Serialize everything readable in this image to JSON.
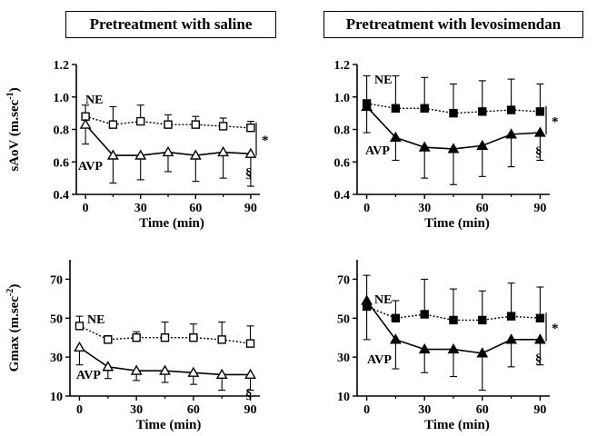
{
  "headers": {
    "left": "Pretreatment with saline",
    "right": "Pretreatment with levosimendan"
  },
  "chart_data": [
    {
      "id": "sAoV-saline",
      "type": "line",
      "title": "Pretreatment with saline",
      "xlabel": "Time (min)",
      "ylabel": "sAoV (m.sec-1)",
      "ylabel_main": "sAoV (m.sec",
      "ylabel_sup": "-1",
      "ylabel_end": ")",
      "x": [
        0,
        15,
        30,
        45,
        60,
        75,
        90
      ],
      "xticks": [
        "0",
        "30",
        "60",
        "90"
      ],
      "xtick_values": [
        0,
        30,
        60,
        90
      ],
      "yticks": [
        "0.4",
        "0.6",
        "0.8",
        "1.0",
        "1.2"
      ],
      "ytick_values": [
        0.4,
        0.6,
        0.8,
        1.0,
        1.2
      ],
      "xlim": [
        -5,
        95
      ],
      "ylim": [
        0.4,
        1.2
      ],
      "grid": false,
      "series": [
        {
          "name": "NE",
          "marker": "square-open",
          "dash": "dotted",
          "values": [
            0.88,
            0.83,
            0.85,
            0.83,
            0.83,
            0.82,
            0.81
          ],
          "error": [
            0.07,
            0.11,
            0.1,
            0.06,
            0.05,
            0.05,
            0.04
          ]
        },
        {
          "name": "AVP",
          "marker": "triangle-open",
          "dash": "solid",
          "values": [
            0.83,
            0.64,
            0.64,
            0.66,
            0.64,
            0.66,
            0.65
          ],
          "error": [
            0.12,
            0.17,
            0.15,
            0.12,
            0.16,
            0.16,
            0.2
          ]
        }
      ],
      "annotations": [
        "*",
        "§"
      ]
    },
    {
      "id": "sAoV-levosimendan",
      "type": "line",
      "title": "Pretreatment with levosimendan",
      "xlabel": "Time (min)",
      "ylabel": "",
      "x": [
        0,
        15,
        30,
        45,
        60,
        75,
        90
      ],
      "xticks": [
        "0",
        "30",
        "60",
        "90"
      ],
      "xtick_values": [
        0,
        30,
        60,
        90
      ],
      "yticks": [
        "0.4",
        "0.6",
        "0.8",
        "1.0",
        "1.2"
      ],
      "ytick_values": [
        0.4,
        0.6,
        0.8,
        1.0,
        1.2
      ],
      "xlim": [
        -5,
        95
      ],
      "ylim": [
        0.4,
        1.2
      ],
      "grid": false,
      "series": [
        {
          "name": "NE",
          "marker": "square-filled",
          "dash": "dotted",
          "values": [
            0.96,
            0.93,
            0.93,
            0.9,
            0.91,
            0.92,
            0.91
          ],
          "error": [
            0.17,
            0.2,
            0.19,
            0.18,
            0.19,
            0.19,
            0.17
          ]
        },
        {
          "name": "AVP",
          "marker": "triangle-filled",
          "dash": "solid",
          "values": [
            0.94,
            0.75,
            0.69,
            0.68,
            0.7,
            0.77,
            0.78
          ],
          "error": [
            0.16,
            0.14,
            0.19,
            0.22,
            0.19,
            0.2,
            0.17
          ]
        }
      ],
      "annotations": [
        "*",
        "§"
      ]
    },
    {
      "id": "Gmax-saline",
      "type": "line",
      "title": "",
      "xlabel": "Time (min)",
      "ylabel": "Gmax (m.sec-2)",
      "ylabel_main": "Gmax (m.sec",
      "ylabel_sup": "-2",
      "ylabel_end": ")",
      "x": [
        0,
        15,
        30,
        45,
        60,
        75,
        90
      ],
      "xticks": [
        "0",
        "30",
        "60",
        "90"
      ],
      "xtick_values": [
        0,
        30,
        60,
        90
      ],
      "yticks": [
        "10",
        "30",
        "50",
        "70"
      ],
      "ytick_values": [
        10,
        30,
        50,
        70
      ],
      "xlim": [
        -5,
        95
      ],
      "ylim": [
        10,
        80
      ],
      "grid": false,
      "series": [
        {
          "name": "NE",
          "marker": "square-open",
          "dash": "dotted",
          "values": [
            46,
            39,
            40,
            40,
            40,
            39,
            37
          ],
          "error": [
            5,
            2,
            3,
            8,
            7,
            9,
            9
          ]
        },
        {
          "name": "AVP",
          "marker": "triangle-open",
          "dash": "solid",
          "values": [
            35,
            25,
            23,
            23,
            22,
            21,
            21
          ],
          "error": [
            9,
            6,
            5,
            6,
            6,
            8,
            8
          ]
        }
      ],
      "annotations": [
        "§"
      ]
    },
    {
      "id": "Gmax-levosimendan",
      "type": "line",
      "title": "",
      "xlabel": "Time (min)",
      "ylabel": "",
      "x": [
        0,
        15,
        30,
        45,
        60,
        75,
        90
      ],
      "xticks": [
        "0",
        "30",
        "60",
        "90"
      ],
      "xtick_values": [
        0,
        30,
        60,
        90
      ],
      "yticks": [
        "10",
        "30",
        "50",
        "70"
      ],
      "ytick_values": [
        10,
        30,
        50,
        70
      ],
      "xlim": [
        -5,
        95
      ],
      "ylim": [
        10,
        80
      ],
      "grid": false,
      "series": [
        {
          "name": "NE",
          "marker": "square-filled",
          "dash": "dotted",
          "values": [
            56,
            50,
            52,
            49,
            49,
            51,
            50
          ],
          "error": [
            16,
            9,
            18,
            16,
            15,
            17,
            16
          ]
        },
        {
          "name": "AVP",
          "marker": "triangle-filled",
          "dash": "solid",
          "values": [
            59,
            39,
            34,
            34,
            32,
            39,
            39
          ],
          "error": [
            20,
            15,
            12,
            14,
            19,
            14,
            13
          ]
        }
      ],
      "annotations": [
        "*",
        "§"
      ]
    }
  ]
}
